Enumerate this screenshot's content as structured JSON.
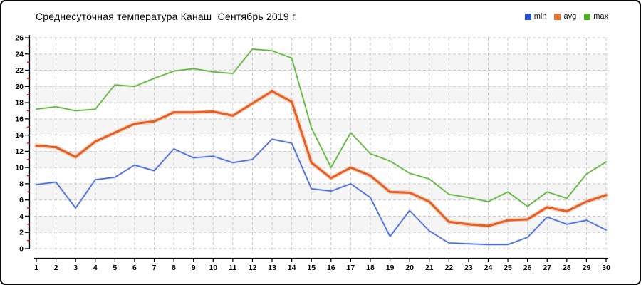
{
  "title": "Среднесуточная температура Канаш  Сентябрь 2019 г.",
  "legend": [
    {
      "label": "min",
      "color": "#2b50d5"
    },
    {
      "label": "avg",
      "color": "#e8702e"
    },
    {
      "label": "max",
      "color": "#4fae27"
    }
  ],
  "chart_data": {
    "type": "line",
    "title": "Среднесуточная температура Канаш  Сентябрь 2019 г.",
    "xlabel": "",
    "ylabel": "",
    "x": [
      1,
      2,
      3,
      4,
      5,
      6,
      7,
      8,
      9,
      10,
      11,
      12,
      13,
      14,
      15,
      16,
      17,
      18,
      19,
      20,
      21,
      22,
      23,
      24,
      25,
      26,
      27,
      28,
      29,
      30
    ],
    "xlim": [
      1,
      30
    ],
    "ylim": [
      0,
      26
    ],
    "ytick_step": 2,
    "y_minor_tick_step": 1,
    "grid": true,
    "legend_position": "top-right",
    "series": [
      {
        "name": "min",
        "color": "#4a6cd9",
        "halo_color": "#bcc9f2",
        "line_width": 1.6,
        "values": [
          7.9,
          8.2,
          5.0,
          8.5,
          8.8,
          10.3,
          9.6,
          12.3,
          11.2,
          11.4,
          10.6,
          11.0,
          13.5,
          13.0,
          7.4,
          7.1,
          8.0,
          6.3,
          1.5,
          4.7,
          2.2,
          0.7,
          0.6,
          0.5,
          0.5,
          1.4,
          3.9,
          3.0,
          3.5,
          2.3
        ]
      },
      {
        "name": "avg",
        "color": "#e2602a",
        "halo_color": "#f3bb93",
        "line_width": 3.1,
        "values": [
          12.7,
          12.5,
          11.3,
          13.2,
          14.3,
          15.4,
          15.7,
          16.8,
          16.8,
          16.9,
          16.4,
          17.9,
          19.4,
          18.1,
          10.6,
          8.7,
          10.0,
          9.0,
          7.0,
          6.9,
          5.8,
          3.3,
          3.0,
          2.8,
          3.5,
          3.6,
          5.1,
          4.6,
          5.8,
          6.6
        ]
      },
      {
        "name": "max",
        "color": "#63b443",
        "halo_color": "#c6e5b2",
        "line_width": 1.6,
        "values": [
          17.2,
          17.5,
          17.0,
          17.2,
          20.2,
          20.0,
          21.0,
          21.9,
          22.2,
          21.8,
          21.6,
          24.6,
          24.4,
          23.5,
          14.9,
          10.0,
          14.3,
          11.7,
          10.8,
          9.3,
          8.6,
          6.7,
          6.3,
          5.8,
          7.0,
          5.2,
          7.0,
          6.2,
          9.2,
          10.7
        ]
      }
    ],
    "style": {
      "grid_color": "#c8c8c8",
      "band_color": "#f5f5f5",
      "axis_color": "#000000",
      "minor_tick_color": "#d40000"
    }
  }
}
